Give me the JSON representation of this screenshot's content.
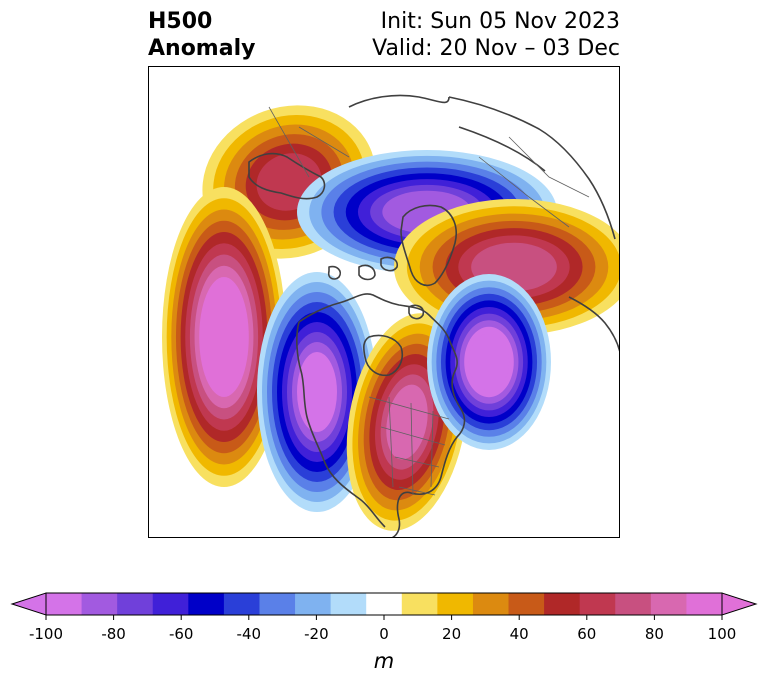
{
  "title": {
    "left_line1": "H500",
    "left_line2": "Anomaly",
    "right_line1": "Init: Sun 05 Nov 2023",
    "right_line2": "Valid: 20 Nov – 03 Dec"
  },
  "colorbar": {
    "unit": "m",
    "ticks": [
      "-100",
      "-80",
      "-60",
      "-40",
      "-20",
      "0",
      "20",
      "40",
      "60",
      "80",
      "100"
    ],
    "levels": [
      -100,
      -90,
      -80,
      -70,
      -60,
      -50,
      -40,
      -30,
      -20,
      -10,
      10,
      20,
      30,
      40,
      50,
      60,
      70,
      80,
      90,
      100
    ],
    "colors": [
      "#d473e8",
      "#a25ae0",
      "#7040da",
      "#4020d8",
      "#0000c8",
      "#2a3fd8",
      "#5a80e8",
      "#7fb2f0",
      "#b2dcfa",
      "#ffffff",
      "#f8e060",
      "#f0b800",
      "#dc8a10",
      "#c85a18",
      "#b02828",
      "#c03850",
      "#c85080",
      "#d868b0",
      "#e070d8"
    ],
    "extend": "both"
  },
  "anomalies": [
    {
      "sign": "positive",
      "region": "Alaska",
      "peak": 60
    },
    {
      "sign": "negative",
      "region": "Arctic / Greenland",
      "peak": -80
    },
    {
      "sign": "positive",
      "region": "Siberia",
      "peak": 70
    },
    {
      "sign": "positive",
      "region": "North Pacific",
      "peak": 100
    },
    {
      "sign": "negative",
      "region": "Western North America",
      "peak": -90
    },
    {
      "sign": "positive",
      "region": "Eastern Canada / Great Lakes",
      "peak": 80
    },
    {
      "sign": "negative",
      "region": "North Atlantic",
      "peak": -100
    }
  ]
}
